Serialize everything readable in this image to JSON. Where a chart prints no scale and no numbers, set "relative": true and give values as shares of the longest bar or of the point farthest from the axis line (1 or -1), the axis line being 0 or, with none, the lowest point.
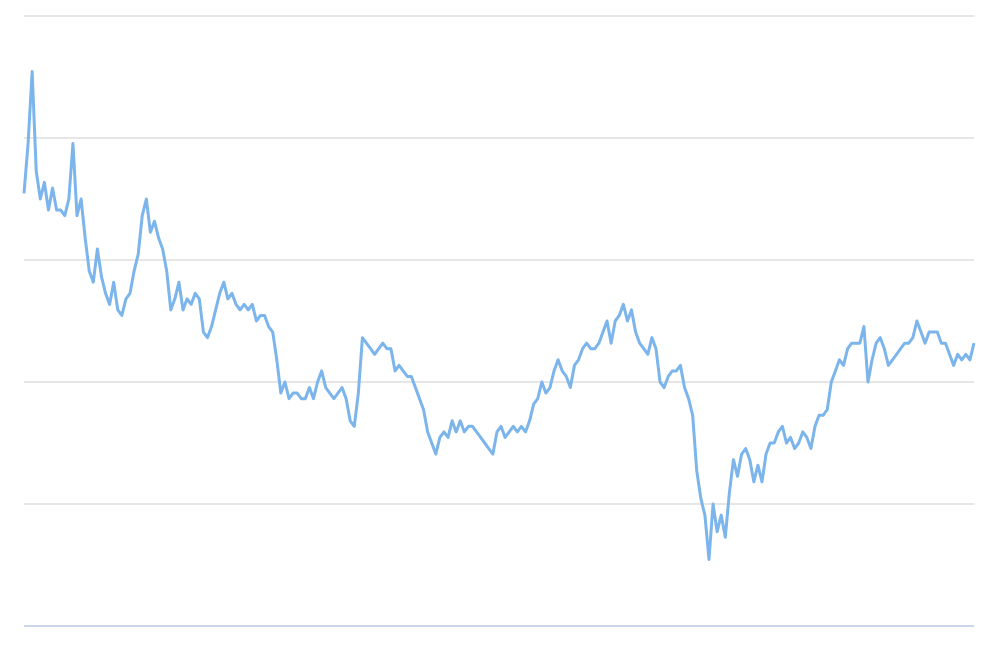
{
  "chart_data": {
    "type": "line",
    "relative": true,
    "grid": "y",
    "color": "#7cb5ec",
    "categories": [
      null,
      null,
      null,
      null,
      null,
      null,
      null,
      null,
      null,
      null,
      null,
      null,
      null,
      null,
      null,
      null,
      null,
      null,
      null,
      null,
      null,
      null,
      null,
      null,
      null,
      null,
      null,
      null,
      null,
      null,
      null,
      null,
      null,
      null,
      null,
      null,
      null,
      null,
      null,
      null,
      null,
      null,
      null,
      null,
      null,
      null,
      null,
      null,
      null,
      null,
      null,
      null,
      null,
      null,
      null,
      null,
      null,
      null,
      null,
      null,
      null,
      null,
      null,
      null,
      null,
      null,
      null,
      null,
      null,
      null,
      null,
      null,
      null,
      null,
      null,
      null,
      null,
      null,
      null,
      null,
      null,
      null,
      null,
      null,
      null,
      null,
      null,
      null,
      null,
      null,
      null,
      null,
      null,
      null,
      null,
      null,
      null,
      null,
      null,
      null,
      null,
      null,
      null,
      null,
      null,
      null,
      null,
      null,
      null,
      null,
      null,
      null,
      null,
      null,
      null,
      null,
      null,
      null,
      null,
      null,
      null,
      null,
      null,
      null,
      null,
      null,
      null,
      null,
      null,
      null,
      null,
      null,
      null,
      null,
      null,
      null,
      null,
      null,
      null,
      null,
      null,
      null,
      null,
      null,
      null,
      null,
      null,
      null,
      null,
      null,
      null,
      null,
      null,
      null,
      null,
      null,
      null,
      null,
      null,
      null,
      null,
      null,
      null,
      null,
      null,
      null,
      null,
      null,
      null,
      null,
      null,
      null,
      null,
      null,
      null,
      null,
      null,
      null,
      null,
      null,
      null,
      null,
      null,
      null,
      null,
      null,
      null,
      null,
      null,
      null,
      null,
      null,
      null,
      null,
      null,
      null,
      null,
      null,
      null,
      null,
      null,
      null,
      null,
      null,
      null,
      null,
      null,
      null,
      null,
      null,
      null,
      null,
      null,
      null,
      null,
      null,
      null,
      null,
      null,
      null,
      null,
      null,
      null,
      null,
      null,
      null,
      null,
      null,
      null,
      null,
      null,
      null,
      null,
      null
    ],
    "values": [
      0.78,
      0.87,
      1,
      0.82,
      0.77,
      0.8,
      0.75,
      0.79,
      0.75,
      0.75,
      0.74,
      0.77,
      0.87,
      0.74,
      0.77,
      0.7,
      0.64,
      0.62,
      0.68,
      0.63,
      0.6,
      0.58,
      0.62,
      0.57,
      0.56,
      0.59,
      0.6,
      0.64,
      0.67,
      0.74,
      0.77,
      0.71,
      0.73,
      0.7,
      0.68,
      0.64,
      0.57,
      0.59,
      0.62,
      0.57,
      0.59,
      0.58,
      0.6,
      0.59,
      0.53,
      0.52,
      0.54,
      0.57,
      0.6,
      0.62,
      0.59,
      0.6,
      0.58,
      0.57,
      0.58,
      0.57,
      0.58,
      0.55,
      0.56,
      0.56,
      0.54,
      0.53,
      0.48,
      0.42,
      0.44,
      0.41,
      0.42,
      0.42,
      0.41,
      0.41,
      0.43,
      0.41,
      0.44,
      0.46,
      0.43,
      0.42,
      0.41,
      0.42,
      0.43,
      0.41,
      0.37,
      0.36,
      0.42,
      0.52,
      0.51,
      0.5,
      0.49,
      0.5,
      0.51,
      0.5,
      0.5,
      0.46,
      0.47,
      0.46,
      0.45,
      0.45,
      0.43,
      0.41,
      0.39,
      0.35,
      0.33,
      0.31,
      0.34,
      0.35,
      0.34,
      0.37,
      0.35,
      0.37,
      0.35,
      0.36,
      0.36,
      0.35,
      0.34,
      0.33,
      0.32,
      0.31,
      0.35,
      0.36,
      0.34,
      0.35,
      0.36,
      0.35,
      0.36,
      0.35,
      0.37,
      0.4,
      0.41,
      0.44,
      0.42,
      0.43,
      0.46,
      0.48,
      0.46,
      0.45,
      0.43,
      0.47,
      0.48,
      0.5,
      0.51,
      0.5,
      0.5,
      0.51,
      0.53,
      0.55,
      0.51,
      0.55,
      0.56,
      0.58,
      0.55,
      0.57,
      0.53,
      0.51,
      0.5,
      0.49,
      0.52,
      0.5,
      0.44,
      0.43,
      0.45,
      0.46,
      0.46,
      0.47,
      0.43,
      0.41,
      0.38,
      0.28,
      0.23,
      0.2,
      0.12,
      0.22,
      0.17,
      0.2,
      0.16,
      0.24,
      0.3,
      0.27,
      0.31,
      0.32,
      0.3,
      0.26,
      0.29,
      0.26,
      0.31,
      0.33,
      0.33,
      0.35,
      0.36,
      0.33,
      0.34,
      0.32,
      0.33,
      0.35,
      0.34,
      0.32,
      0.36,
      0.38,
      0.38,
      0.39,
      0.44,
      0.46,
      0.48,
      0.47,
      0.5,
      0.51,
      0.51,
      0.51,
      0.54,
      0.44,
      0.48,
      0.51,
      0.52,
      0.5,
      0.47,
      0.48,
      0.49,
      0.5,
      0.51,
      0.51,
      0.52,
      0.55,
      0.53,
      0.51,
      0.53,
      0.53,
      0.53,
      0.51,
      0.51,
      0.49,
      0.47,
      0.49,
      0.48,
      0.49,
      0.48,
      0.51
    ]
  }
}
